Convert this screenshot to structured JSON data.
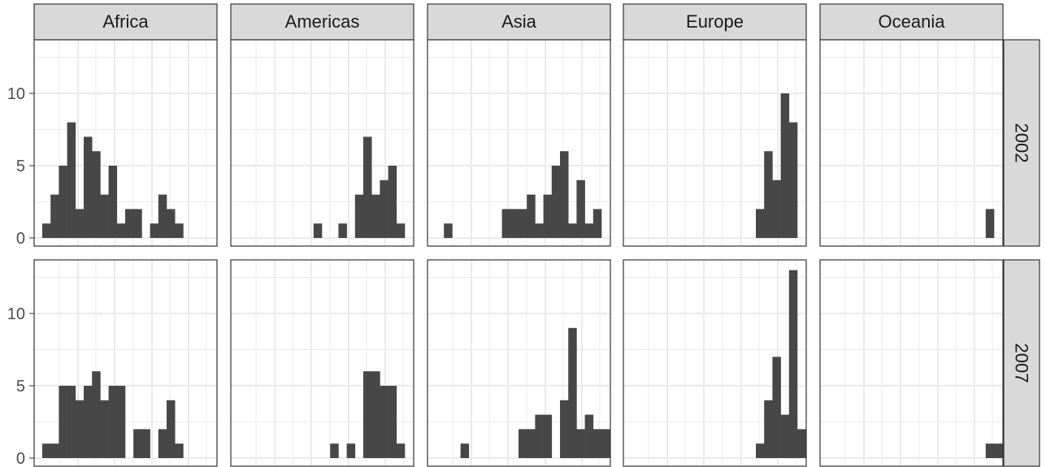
{
  "chart_data": {
    "type": "bar",
    "facet_columns": [
      "Africa",
      "Americas",
      "Asia",
      "Europe",
      "Oceania"
    ],
    "facet_rows": [
      "2002",
      "2007"
    ],
    "y_ticks": [
      "0",
      "5",
      "10"
    ],
    "ylim": [
      0,
      13.5
    ],
    "grid": true,
    "colors": {
      "bar": "#474747",
      "strip_bg": "#d9d9d9",
      "grid": "#ebebeb",
      "border": "#333333",
      "text": "#1a1a1a",
      "tick_text": "#4d4d4d"
    },
    "panels": [
      {
        "row": "2002",
        "col": "Africa",
        "bins": [
          [
            0,
            1
          ],
          [
            1,
            3
          ],
          [
            2,
            5
          ],
          [
            3,
            8
          ],
          [
            4,
            2
          ],
          [
            5,
            7
          ],
          [
            6,
            6
          ],
          [
            7,
            3
          ],
          [
            8,
            5
          ],
          [
            9,
            1
          ],
          [
            10,
            2
          ],
          [
            11,
            2
          ],
          [
            13,
            1
          ],
          [
            14,
            3
          ],
          [
            15,
            2
          ],
          [
            16,
            1
          ]
        ]
      },
      {
        "row": "2002",
        "col": "Americas",
        "bins": [
          [
            9,
            1
          ],
          [
            12,
            1
          ],
          [
            14,
            3
          ],
          [
            15,
            7
          ],
          [
            16,
            3
          ],
          [
            17,
            4
          ],
          [
            18,
            5
          ],
          [
            19,
            1
          ]
        ]
      },
      {
        "row": "2002",
        "col": "Asia",
        "bins": [
          [
            1,
            1
          ],
          [
            8,
            2
          ],
          [
            9,
            2
          ],
          [
            10,
            2
          ],
          [
            11,
            3
          ],
          [
            12,
            1
          ],
          [
            13,
            3
          ],
          [
            14,
            5
          ],
          [
            15,
            6
          ],
          [
            16,
            1
          ],
          [
            17,
            4
          ],
          [
            18,
            1
          ],
          [
            19,
            2
          ]
        ]
      },
      {
        "row": "2002",
        "col": "Europe",
        "bins": [
          [
            15,
            2
          ],
          [
            16,
            6
          ],
          [
            17,
            4
          ],
          [
            18,
            10
          ],
          [
            19,
            8
          ]
        ]
      },
      {
        "row": "2002",
        "col": "Oceania",
        "bins": [
          [
            19,
            2
          ]
        ]
      },
      {
        "row": "2007",
        "col": "Africa",
        "bins": [
          [
            0,
            1
          ],
          [
            1,
            1
          ],
          [
            2,
            5
          ],
          [
            3,
            5
          ],
          [
            4,
            4
          ],
          [
            5,
            5
          ],
          [
            6,
            6
          ],
          [
            7,
            4
          ],
          [
            8,
            5
          ],
          [
            9,
            5
          ],
          [
            11,
            2
          ],
          [
            12,
            2
          ],
          [
            14,
            2
          ],
          [
            15,
            4
          ],
          [
            16,
            1
          ]
        ]
      },
      {
        "row": "2007",
        "col": "Americas",
        "bins": [
          [
            11,
            1
          ],
          [
            13,
            1
          ],
          [
            15,
            6
          ],
          [
            16,
            6
          ],
          [
            17,
            5
          ],
          [
            18,
            5
          ],
          [
            19,
            1
          ]
        ]
      },
      {
        "row": "2007",
        "col": "Asia",
        "bins": [
          [
            3,
            1
          ],
          [
            10,
            2
          ],
          [
            11,
            2
          ],
          [
            12,
            3
          ],
          [
            13,
            3
          ],
          [
            15,
            4
          ],
          [
            16,
            9
          ],
          [
            17,
            2
          ],
          [
            18,
            3
          ],
          [
            19,
            2
          ],
          [
            20,
            2
          ]
        ]
      },
      {
        "row": "2007",
        "col": "Europe",
        "bins": [
          [
            15,
            1
          ],
          [
            16,
            4
          ],
          [
            17,
            7
          ],
          [
            18,
            3
          ],
          [
            19,
            13
          ],
          [
            20,
            2
          ]
        ]
      },
      {
        "row": "2007",
        "col": "Oceania",
        "bins": [
          [
            19,
            1
          ],
          [
            20,
            1
          ]
        ]
      }
    ]
  }
}
